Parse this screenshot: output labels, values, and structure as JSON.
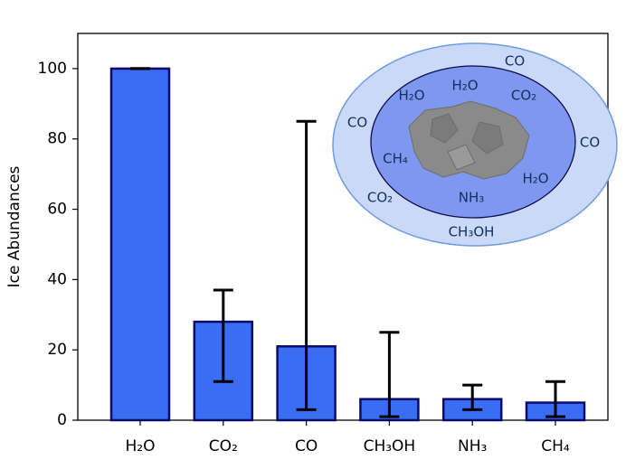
{
  "chart_data": {
    "type": "bar",
    "y_label": "Ice Abundances",
    "categories": [
      "H₂O",
      "CO₂",
      "CO",
      "CH₃OH",
      "NH₃",
      "CH₄"
    ],
    "values": [
      100,
      28,
      21,
      6,
      6,
      5
    ],
    "error_lower": [
      100,
      11,
      3,
      1,
      3,
      1
    ],
    "error_upper": [
      100,
      37,
      85,
      25,
      10,
      11
    ],
    "color": "#3a6cf4",
    "edge_color": "#0b0b6e",
    "ylim": [
      0,
      110
    ],
    "yticks": [
      0,
      20,
      40,
      60,
      80,
      100
    ],
    "grid": false,
    "inset": {
      "labels": [
        "CO",
        "H₂O",
        "H₂O",
        "CO₂",
        "CO",
        "CO",
        "CH₄",
        "H₂O",
        "CO₂",
        "NH₃",
        "CH₃OH"
      ]
    }
  }
}
